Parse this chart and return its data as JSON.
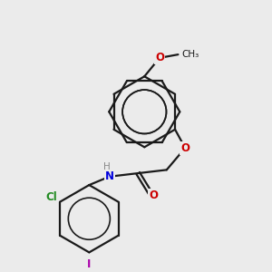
{
  "background_color": "#ebebeb",
  "bond_color": "#1a1a1a",
  "bond_width": 1.6,
  "atom_colors": {
    "O": "#cc0000",
    "N": "#0000dd",
    "H": "#888888",
    "Cl": "#228B22",
    "I": "#aa00aa"
  },
  "font_size": 8.5,
  "font_size_small": 7.5
}
